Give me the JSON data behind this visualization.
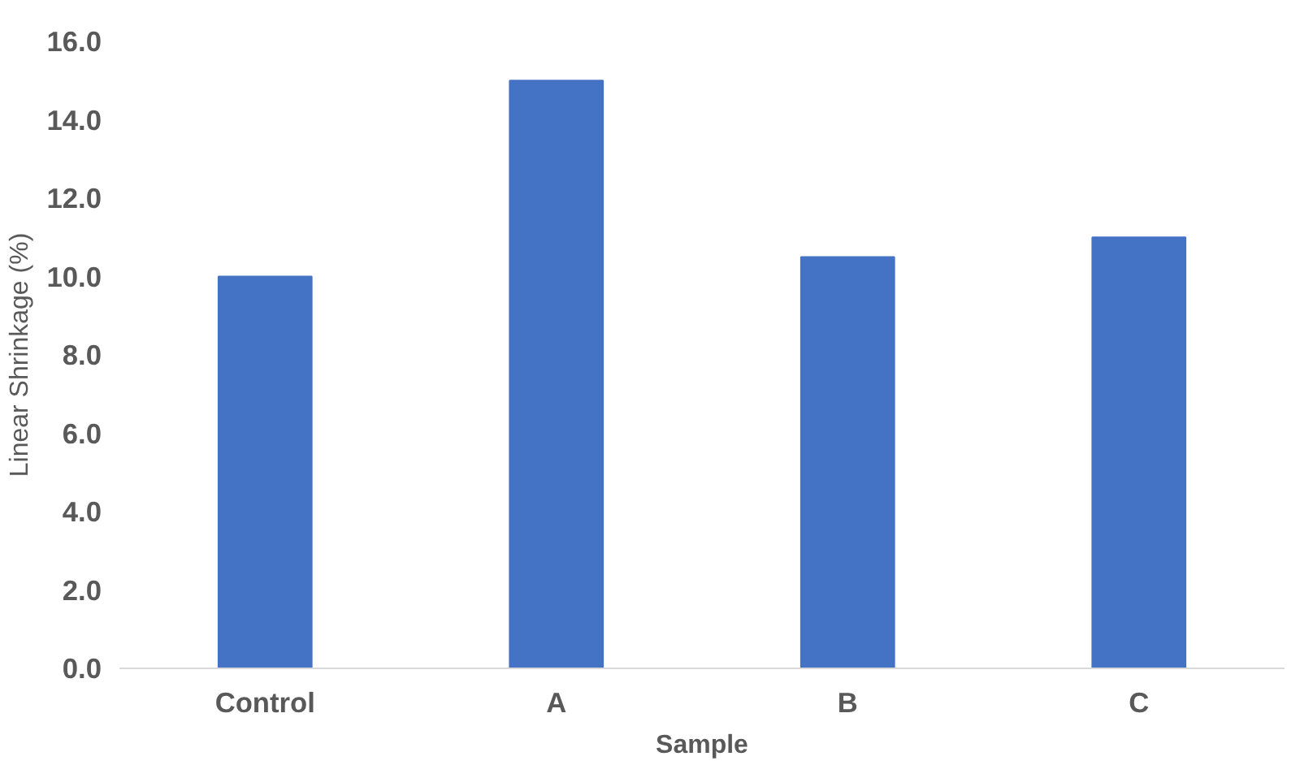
{
  "chart_data": {
    "type": "bar",
    "xlabel": "Sample",
    "ylabel": "Linear Shrinkage (%)",
    "categories": [
      "Control",
      "A",
      "B",
      "C"
    ],
    "values": [
      10.0,
      15.0,
      10.5,
      11.0
    ],
    "color": "#4472c4",
    "ylim": [
      0,
      16
    ],
    "yticks": [
      {
        "value": 0,
        "label": "0.0"
      },
      {
        "value": 2,
        "label": "2.0"
      },
      {
        "value": 4,
        "label": "4.0"
      },
      {
        "value": 6,
        "label": "6.0"
      },
      {
        "value": 8,
        "label": "8.0"
      },
      {
        "value": 10,
        "label": "10.0"
      },
      {
        "value": 12,
        "label": "12.0"
      },
      {
        "value": 14,
        "label": "14.0"
      },
      {
        "value": 16,
        "label": "16.0"
      }
    ],
    "grid": false
  }
}
